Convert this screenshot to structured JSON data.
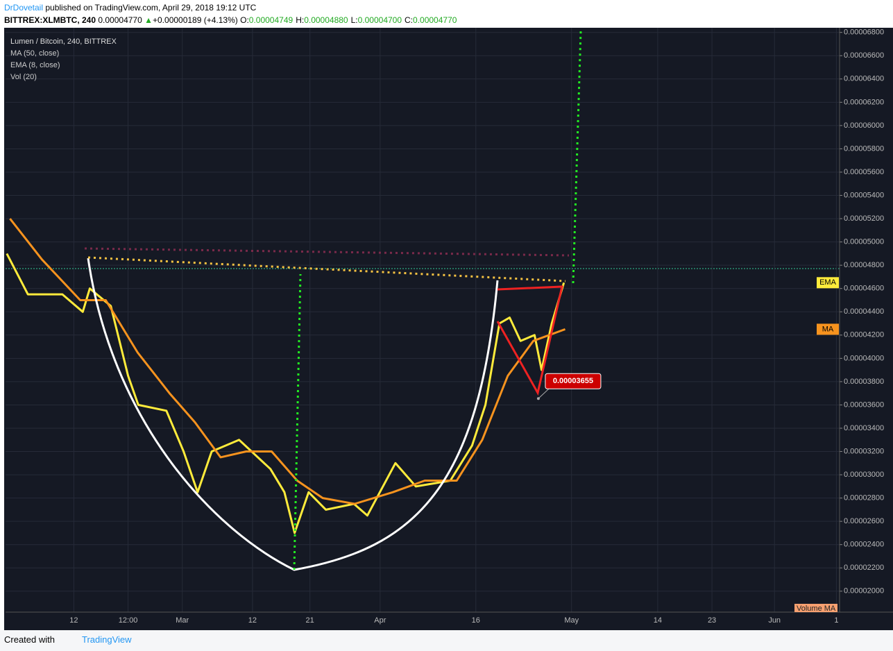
{
  "header": {
    "author": "DrDovetail",
    "published": "published on TradingView.com, April 29, 2018 19:12 UTC",
    "symbol": "BITTREX:XLMBTC, 240",
    "last": "0.00004770",
    "arrow": "▲",
    "change": "+0.00000189 (+4.13%)",
    "ohlc": [
      {
        "label": "O:",
        "value": "0.00004749"
      },
      {
        "label": "H:",
        "value": "0.00004880"
      },
      {
        "label": "L:",
        "value": "0.00004700"
      },
      {
        "label": "C:",
        "value": "0.00004770"
      }
    ]
  },
  "chart_data": {
    "type": "line",
    "legend": [
      "Lumen / Bitcoin, 240, BITTREX",
      "MA (50, close)",
      "EMA (8, close)",
      "Vol (20)"
    ],
    "series": [
      {
        "name": "EMA",
        "color": "#ffeb3b",
        "x": [
          32.5,
          35.8,
          41.2,
          44.4,
          45.5,
          48.8,
          51.5,
          53.1,
          57.5,
          60.2,
          62.4,
          64.6,
          68.9,
          73.8,
          76,
          77.6,
          79.8,
          82.5,
          86.9,
          89,
          93.4,
          96.6,
          102,
          105.4,
          107.5,
          109.7,
          111.3,
          113,
          115.2,
          116.3,
          117.9,
          119.8
        ],
        "values": [
          4.9e-05,
          4.55e-05,
          4.55e-05,
          4.4e-05,
          4.6e-05,
          4.45e-05,
          3.85e-05,
          3.6e-05,
          3.55e-05,
          3.2e-05,
          2.85e-05,
          3.2e-05,
          3.3e-05,
          3.05e-05,
          2.85e-05,
          2.5e-05,
          2.85e-05,
          2.7e-05,
          2.75e-05,
          2.65e-05,
          3.1e-05,
          2.9e-05,
          2.95e-05,
          3.25e-05,
          3.6e-05,
          4.3e-05,
          4.35e-05,
          4.15e-05,
          4.2e-05,
          3.9e-05,
          4.3e-05,
          4.65e-05
        ]
      },
      {
        "name": "MA",
        "color": "#f7931e",
        "x": [
          33,
          38,
          44,
          48,
          53,
          58,
          62,
          66,
          70,
          74,
          78,
          82,
          87,
          93,
          98,
          103,
          107,
          111,
          115,
          120
        ],
        "values": [
          5.2e-05,
          4.85e-05,
          4.5e-05,
          4.5e-05,
          4.05e-05,
          3.7e-05,
          3.45e-05,
          3.15e-05,
          3.2e-05,
          3.2e-05,
          2.95e-05,
          2.8e-05,
          2.75e-05,
          2.85e-05,
          2.95e-05,
          2.95e-05,
          3.3e-05,
          3.85e-05,
          4.15e-05,
          4.25e-05
        ]
      }
    ],
    "low_marker": {
      "x": 115.8,
      "value": 3.655e-05,
      "label": "0.00003655"
    },
    "volume_tag": "Volume MA",
    "xlim": [
      32.3,
      163
    ],
    "ylim": [
      1.82e-05,
      6.84e-05
    ],
    "xticks": [
      {
        "value": 43,
        "label": "12"
      },
      {
        "value": 51.5,
        "label": "12:00"
      },
      {
        "value": 60,
        "label": "Mar"
      },
      {
        "value": 71,
        "label": "12"
      },
      {
        "value": 80,
        "label": "21"
      },
      {
        "value": 91,
        "label": "Apr"
      },
      {
        "value": 106,
        "label": "16"
      },
      {
        "value": 121,
        "label": "May"
      },
      {
        "value": 134.5,
        "label": "14"
      },
      {
        "value": 143,
        "label": "23"
      },
      {
        "value": 152.8,
        "label": "Jun"
      },
      {
        "value": 162.5,
        "label": "1"
      }
    ],
    "yticks": [
      {
        "value": 2e-05,
        "label": "0.00002000"
      },
      {
        "value": 2.2e-05,
        "label": "0.00002200"
      },
      {
        "value": 2.4e-05,
        "label": "0.00002400"
      },
      {
        "value": 2.6e-05,
        "label": "0.00002600"
      },
      {
        "value": 2.8e-05,
        "label": "0.00002800"
      },
      {
        "value": 3e-05,
        "label": "0.00003000"
      },
      {
        "value": 3.2e-05,
        "label": "0.00003200"
      },
      {
        "value": 3.4e-05,
        "label": "0.00003400"
      },
      {
        "value": 3.6e-05,
        "label": "0.00003600"
      },
      {
        "value": 3.8e-05,
        "label": "0.00003800"
      },
      {
        "value": 4e-05,
        "label": "0.00004000"
      },
      {
        "value": 4.2e-05,
        "label": "0.00004200"
      },
      {
        "value": 4.4e-05,
        "label": "0.00004400"
      },
      {
        "value": 4.6e-05,
        "label": "0.00004600"
      },
      {
        "value": 4.8e-05,
        "label": "0.00004800"
      },
      {
        "value": 5e-05,
        "label": "0.00005000"
      },
      {
        "value": 5.2e-05,
        "label": "0.00005200"
      },
      {
        "value": 5.4e-05,
        "label": "0.00005400"
      },
      {
        "value": 5.6e-05,
        "label": "0.00005600"
      },
      {
        "value": 5.8e-05,
        "label": "0.00005800"
      },
      {
        "value": 6e-05,
        "label": "0.00006000"
      },
      {
        "value": 6.2e-05,
        "label": "0.00006200"
      },
      {
        "value": 6.4e-05,
        "label": "0.00006400"
      },
      {
        "value": 6.6e-05,
        "label": "0.00006600"
      },
      {
        "value": 6.8e-05,
        "label": "0.00006800"
      }
    ],
    "grid": true
  },
  "footer": {
    "created": "Created with",
    "brand": "TradingView"
  }
}
